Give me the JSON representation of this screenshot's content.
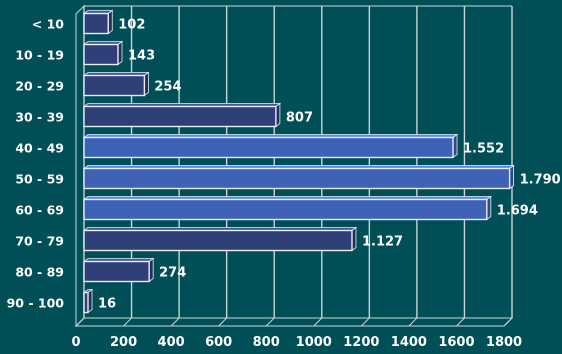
{
  "chart_data": {
    "type": "bar",
    "orientation": "horizontal",
    "title": "",
    "xlabel": "",
    "ylabel": "",
    "categories": [
      "< 10",
      "10 - 19",
      "20 - 29",
      "30 - 39",
      "40 - 49",
      "50 - 59",
      "60 - 69",
      "70 - 79",
      "80 - 89",
      "90 - 100"
    ],
    "values": [
      102,
      143,
      254,
      807,
      1552,
      1790,
      1694,
      1127,
      274,
      16
    ],
    "value_labels": [
      "102",
      "143",
      "254",
      "807",
      "1.552",
      "1.790",
      "1.694",
      "1.127",
      "274",
      "16"
    ],
    "xlim": [
      0,
      1800
    ],
    "x_ticks": [
      "0",
      "200",
      "400",
      "600",
      "800",
      "1000",
      "1200",
      "1400",
      "1600",
      "1800"
    ],
    "x_tick_values": [
      0,
      200,
      400,
      600,
      800,
      1000,
      1200,
      1400,
      1600,
      1800
    ],
    "grid": true,
    "three_d": true,
    "bar_colors": {
      "default": "#2f3f78",
      "highlight": "#3f63b4",
      "highlight_threshold": 1500
    },
    "background": "#004f56",
    "grid_color": "#c8d6d6"
  }
}
